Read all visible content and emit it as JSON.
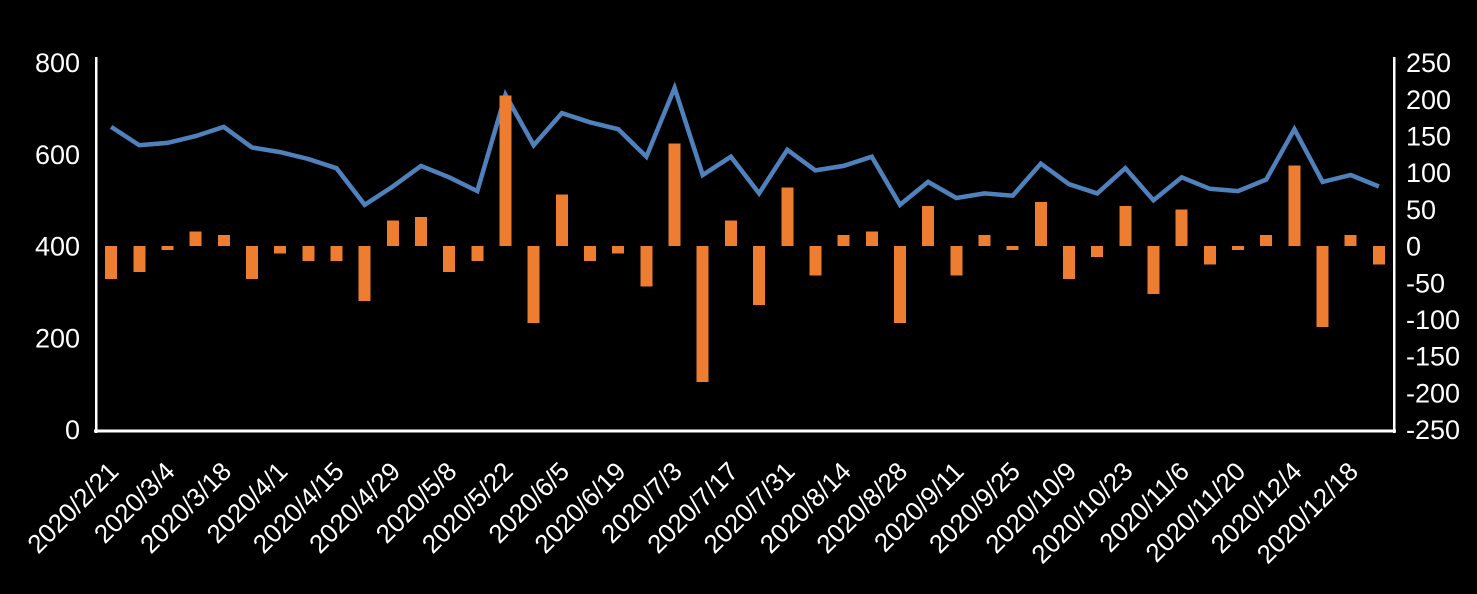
{
  "chart_data": {
    "type": "combo",
    "title": "",
    "legend": "none",
    "background_color": "#000000",
    "text_color": "#FFFFFF",
    "n_points": 46,
    "x_tick_labels": [
      "2020/2/21",
      "2020/3/4",
      "2020/3/18",
      "2020/4/1",
      "2020/4/15",
      "2020/4/29",
      "2020/5/8",
      "2020/5/22",
      "2020/6/5",
      "2020/6/19",
      "2020/7/3",
      "2020/7/17",
      "2020/7/31",
      "2020/8/14",
      "2020/8/28",
      "2020/9/11",
      "2020/9/25",
      "2020/10/9",
      "2020/10/23",
      "2020/11/6",
      "2020/11/20",
      "2020/12/4",
      "2020/12/18"
    ],
    "x_label_every": 2,
    "x_label_rotation_deg": 45,
    "axes": {
      "left": {
        "min": 0,
        "max": 800,
        "ticks": [
          800,
          600,
          400,
          200,
          0
        ]
      },
      "right": {
        "min": -250,
        "max": 250,
        "ticks": [
          250,
          200,
          150,
          100,
          50,
          0,
          -50,
          -100,
          -150,
          -200,
          -250
        ]
      }
    },
    "series": [
      {
        "type": "line",
        "axis": "left",
        "color": "#4F81BD",
        "values": [
          660,
          620,
          625,
          640,
          660,
          615,
          605,
          590,
          570,
          490,
          530,
          575,
          550,
          520,
          730,
          620,
          690,
          670,
          655,
          595,
          745,
          555,
          595,
          515,
          610,
          565,
          575,
          595,
          490,
          540,
          505,
          515,
          510,
          580,
          535,
          515,
          570,
          500,
          550,
          525,
          520,
          545,
          655,
          540,
          555,
          530
        ]
      },
      {
        "type": "bar",
        "axis": "right",
        "color": "#ED7D31",
        "values": [
          -45,
          -35,
          -5,
          20,
          15,
          -45,
          -10,
          -20,
          -20,
          -75,
          35,
          40,
          -35,
          -20,
          205,
          -105,
          70,
          -20,
          -10,
          -55,
          140,
          -185,
          35,
          -80,
          80,
          -40,
          15,
          20,
          -105,
          55,
          -40,
          15,
          -5,
          60,
          -45,
          -15,
          55,
          -65,
          50,
          -25,
          -5,
          15,
          110,
          -110,
          15,
          -25
        ]
      }
    ]
  }
}
